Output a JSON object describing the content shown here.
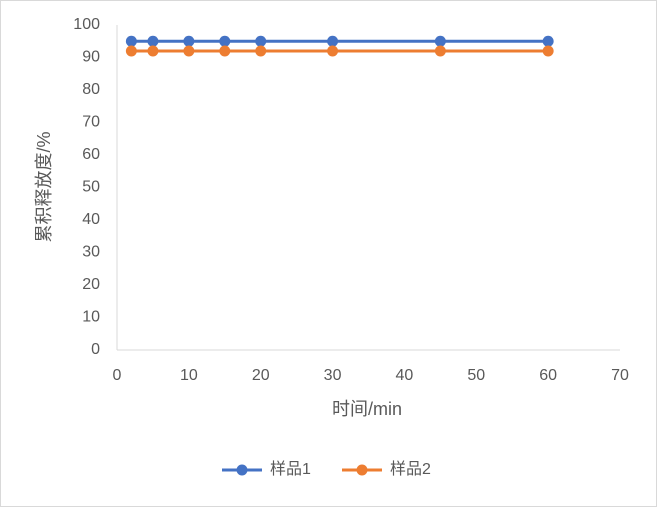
{
  "chart_data": {
    "type": "line",
    "xlabel": "时间/min",
    "ylabel": "累积释放度/%",
    "x": [
      2,
      5,
      10,
      15,
      20,
      30,
      45,
      60
    ],
    "series": [
      {
        "name": "样品1",
        "color": "#4472c4",
        "values": [
          95,
          95,
          95,
          95,
          95,
          95,
          95,
          95
        ]
      },
      {
        "name": "样品2",
        "color": "#ed7d31",
        "values": [
          92,
          92,
          92,
          92,
          92,
          92,
          92,
          92
        ]
      }
    ],
    "xlim": [
      0,
      70
    ],
    "xticks": [
      0,
      10,
      20,
      30,
      40,
      50,
      60,
      70
    ],
    "ylim": [
      0,
      100
    ],
    "yticks": [
      0,
      10,
      20,
      30,
      40,
      50,
      60,
      70,
      80,
      90,
      100
    ],
    "legend": "bottom"
  }
}
